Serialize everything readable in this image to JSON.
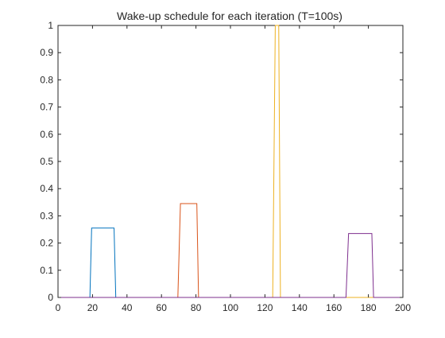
{
  "chart_data": {
    "type": "line",
    "title": "Wake-up schedule for each iteration  (T=100s)",
    "xlabel": "",
    "ylabel": "",
    "xlim": [
      0,
      200
    ],
    "ylim": [
      0,
      1
    ],
    "xticks": [
      0,
      20,
      40,
      60,
      80,
      100,
      120,
      140,
      160,
      180,
      200
    ],
    "yticks": [
      0,
      0.1,
      0.2,
      0.3,
      0.4,
      0.5,
      0.6,
      0.7,
      0.8,
      0.9,
      1
    ],
    "grid": false,
    "legend": "none",
    "series": [
      {
        "color": "#0072BD",
        "x": [
          0,
          18.5,
          19.5,
          32.5,
          33.5,
          200
        ],
        "y": [
          0,
          0,
          0.255,
          0.255,
          0,
          0
        ]
      },
      {
        "color": "#D95319",
        "x": [
          0,
          69.5,
          71,
          80.5,
          81.5,
          200
        ],
        "y": [
          0,
          0,
          0.345,
          0.345,
          0,
          0
        ]
      },
      {
        "color": "#EDB120",
        "x": [
          0,
          124.5,
          126,
          128,
          129,
          200
        ],
        "y": [
          0,
          0,
          1.0,
          1.0,
          0,
          0
        ]
      },
      {
        "color": "#7E2F8E",
        "x": [
          0,
          167,
          168.5,
          182,
          183,
          200
        ],
        "y": [
          0,
          0,
          0.235,
          0.235,
          0,
          0
        ]
      }
    ]
  }
}
